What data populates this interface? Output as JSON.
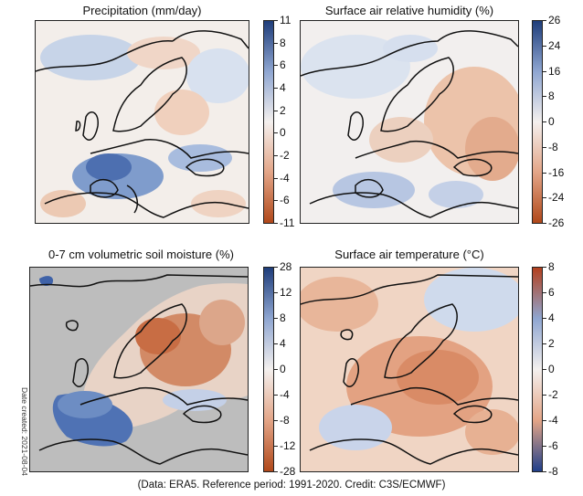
{
  "panels": [
    {
      "title": "Precipitation (mm/day)",
      "colorbar": {
        "scheme": "brown-blue",
        "low": "#b0481a",
        "high": "#1f3d7a",
        "ticks": [
          "11",
          "8",
          "6",
          "4",
          "2",
          "0",
          "-2",
          "-4",
          "-6",
          "-11"
        ]
      }
    },
    {
      "title": "Surface air relative humidity (%)",
      "colorbar": {
        "scheme": "brown-blue",
        "low": "#b0481a",
        "high": "#1f3d7a",
        "ticks": [
          "26",
          "24",
          "16",
          "8",
          "0",
          "-8",
          "-16",
          "-24",
          "-26"
        ]
      }
    },
    {
      "title": "0-7 cm volumetric soil moisture (%)",
      "colorbar": {
        "scheme": "brown-blue",
        "low": "#b0481a",
        "high": "#1f3d7a",
        "ticks": [
          "28",
          "12",
          "8",
          "4",
          "0",
          "-4",
          "-8",
          "-12",
          "-28"
        ]
      }
    },
    {
      "title": "Surface air temperature (°C)",
      "colorbar": {
        "scheme": "blue-red",
        "low": "#203f8a",
        "high": "#b3401e",
        "ticks": [
          "8",
          "6",
          "4",
          "2",
          "0",
          "-2",
          "-4",
          "-6",
          "-8"
        ]
      }
    }
  ],
  "side_note": "Date created: 2021-08-04",
  "credit": "(Data: ERA5.  Reference period: 1991-2020.  Credit: C3S/ECMWF)",
  "colors": {
    "coast": "#111111",
    "no_data": "#bdbdbd",
    "neutral": "#f4f0ee"
  }
}
